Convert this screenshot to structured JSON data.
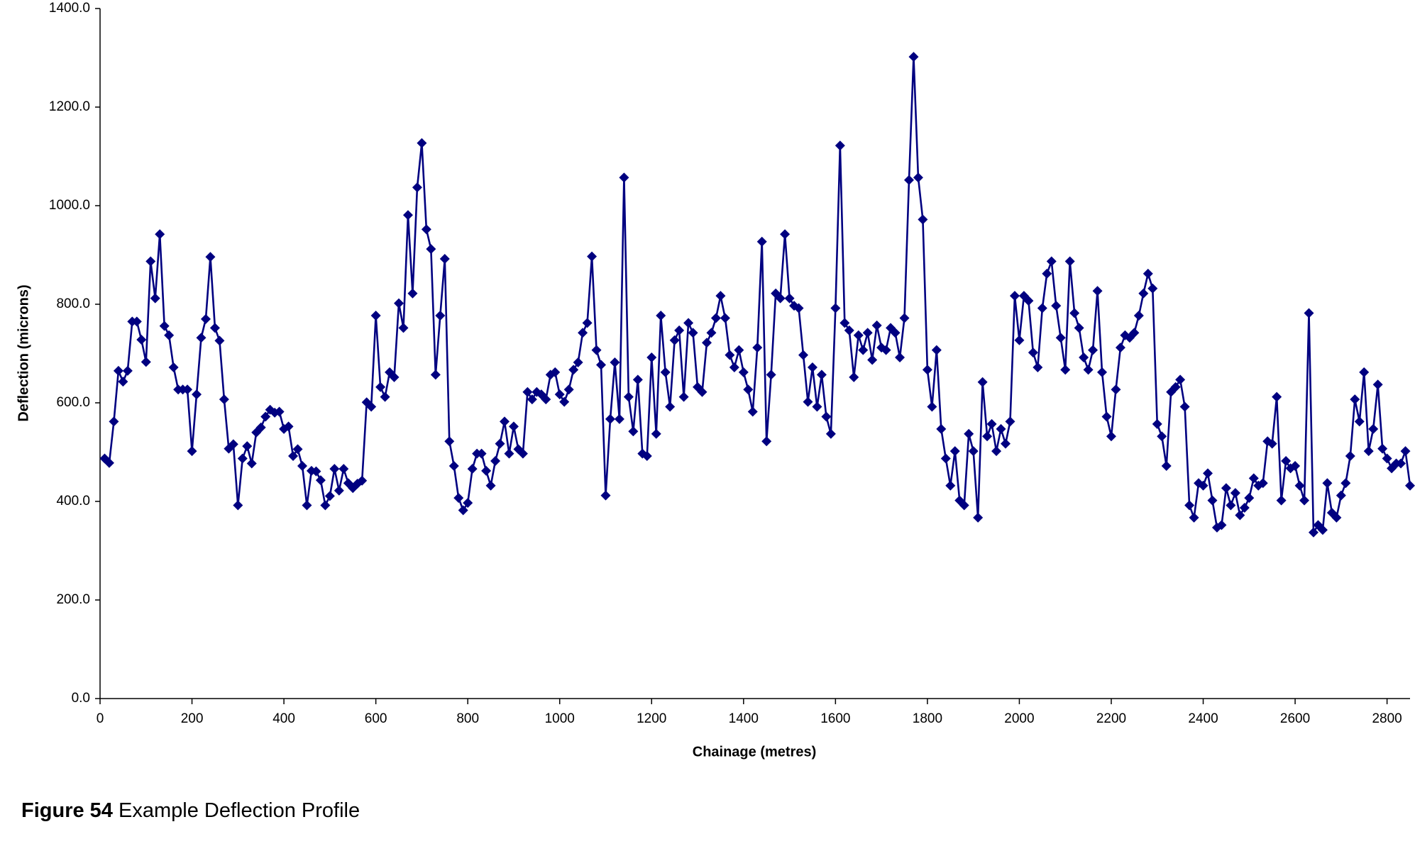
{
  "chart_data": {
    "type": "line",
    "x_label": "Chainage (metres)",
    "y_label": "Deflection (microns)",
    "caption": {
      "label": "Figure 54",
      "text": "Example Deflection Profile"
    },
    "color": "#000080",
    "marker": "diamond",
    "grid": false,
    "xlim": [
      0,
      2850
    ],
    "xticks": [
      0,
      200,
      400,
      600,
      800,
      1000,
      1200,
      1400,
      1600,
      1800,
      2000,
      2200,
      2400,
      2600,
      2800
    ],
    "ylim": [
      0,
      1400
    ],
    "yticks": [
      {
        "value": 0,
        "label": "0.0"
      },
      {
        "value": 200,
        "label": "200.0"
      },
      {
        "value": 400,
        "label": "400.0"
      },
      {
        "value": 600,
        "label": "600.0"
      },
      {
        "value": 800,
        "label": "800.0"
      },
      {
        "value": 1000,
        "label": "1000.0"
      },
      {
        "value": 1200,
        "label": "1200.0"
      },
      {
        "value": 1400,
        "label": "1400.0"
      }
    ],
    "x": [
      10,
      20,
      30,
      40,
      50,
      60,
      70,
      80,
      90,
      100,
      110,
      120,
      130,
      140,
      150,
      160,
      170,
      180,
      190,
      200,
      210,
      220,
      230,
      240,
      250,
      260,
      270,
      280,
      290,
      300,
      310,
      320,
      330,
      340,
      350,
      360,
      370,
      380,
      390,
      400,
      410,
      420,
      430,
      440,
      450,
      460,
      470,
      480,
      490,
      500,
      510,
      520,
      530,
      540,
      550,
      560,
      570,
      580,
      590,
      600,
      610,
      620,
      630,
      640,
      650,
      660,
      670,
      680,
      690,
      700,
      710,
      720,
      730,
      740,
      750,
      760,
      770,
      780,
      790,
      800,
      810,
      820,
      830,
      840,
      850,
      860,
      870,
      880,
      890,
      900,
      910,
      920,
      930,
      940,
      950,
      960,
      970,
      980,
      990,
      1000,
      1010,
      1020,
      1030,
      1040,
      1050,
      1060,
      1070,
      1080,
      1090,
      1100,
      1110,
      1120,
      1130,
      1140,
      1150,
      1160,
      1170,
      1180,
      1190,
      1200,
      1210,
      1220,
      1230,
      1240,
      1250,
      1260,
      1270,
      1280,
      1290,
      1300,
      1310,
      1320,
      1330,
      1340,
      1350,
      1360,
      1370,
      1380,
      1390,
      1400,
      1410,
      1420,
      1430,
      1440,
      1450,
      1460,
      1470,
      1480,
      1490,
      1500,
      1510,
      1520,
      1530,
      1540,
      1550,
      1560,
      1570,
      1580,
      1590,
      1600,
      1610,
      1620,
      1630,
      1640,
      1650,
      1660,
      1670,
      1680,
      1690,
      1700,
      1710,
      1720,
      1730,
      1740,
      1750,
      1760,
      1770,
      1780,
      1790,
      1800,
      1810,
      1820,
      1830,
      1840,
      1850,
      1860,
      1870,
      1880,
      1890,
      1900,
      1910,
      1920,
      1930,
      1940,
      1950,
      1960,
      1970,
      1980,
      1990,
      2000,
      2010,
      2020,
      2030,
      2040,
      2050,
      2060,
      2070,
      2080,
      2090,
      2100,
      2110,
      2120,
      2130,
      2140,
      2150,
      2160,
      2170,
      2180,
      2190,
      2200,
      2210,
      2220,
      2230,
      2240,
      2250,
      2260,
      2270,
      2280,
      2290,
      2300,
      2310,
      2320,
      2330,
      2340,
      2350,
      2360,
      2370,
      2380,
      2390,
      2400,
      2410,
      2420,
      2430,
      2440,
      2450,
      2460,
      2470,
      2480,
      2490,
      2500,
      2510,
      2520,
      2530,
      2540,
      2550,
      2560,
      2570,
      2580,
      2590,
      2600,
      2610,
      2620,
      2630,
      2640,
      2650,
      2660,
      2670,
      2680,
      2690,
      2700,
      2710,
      2720,
      2730,
      2740,
      2750,
      2760,
      2770,
      2780,
      2790,
      2800,
      2810,
      2820,
      2830,
      2840,
      2850
    ],
    "values": [
      487,
      478,
      562,
      665,
      643,
      665,
      765,
      765,
      728,
      683,
      887,
      812,
      942,
      756,
      737,
      672,
      627,
      627,
      627,
      502,
      617,
      732,
      770,
      896,
      752,
      726,
      607,
      507,
      516,
      392,
      487,
      512,
      477,
      540,
      550,
      572,
      586,
      580,
      582,
      547,
      552,
      492,
      506,
      472,
      392,
      462,
      461,
      443,
      392,
      411,
      466,
      422,
      466,
      437,
      427,
      436,
      442,
      601,
      592,
      777,
      632,
      612,
      662,
      652,
      802,
      752,
      981,
      822,
      1037,
      1127,
      952,
      912,
      657,
      777,
      892,
      522,
      472,
      407,
      382,
      397,
      466,
      497,
      497,
      462,
      432,
      482,
      517,
      562,
      497,
      552,
      506,
      497,
      622,
      607,
      622,
      617,
      607,
      657,
      662,
      617,
      602,
      627,
      667,
      682,
      742,
      762,
      897,
      707,
      677,
      412,
      567,
      682,
      567,
      1057,
      612,
      542,
      647,
      497,
      492,
      692,
      537,
      777,
      662,
      592,
      727,
      747,
      612,
      762,
      742,
      632,
      622,
      722,
      742,
      772,
      817,
      772,
      697,
      672,
      707,
      662,
      627,
      582,
      712,
      927,
      522,
      657,
      822,
      812,
      942,
      812,
      797,
      792,
      697,
      602,
      672,
      592,
      657,
      572,
      537,
      792,
      1122,
      762,
      747,
      652,
      737,
      707,
      742,
      687,
      757,
      712,
      707,
      752,
      742,
      692,
      772,
      1052,
      1302,
      1057,
      972,
      667,
      592,
      707,
      547,
      487,
      432,
      502,
      402,
      392,
      537,
      502,
      367,
      642,
      532,
      557,
      502,
      547,
      517,
      562,
      817,
      727,
      817,
      807,
      702,
      672,
      792,
      862,
      887,
      797,
      732,
      667,
      887,
      782,
      752,
      692,
      667,
      707,
      827,
      662,
      572,
      532,
      627,
      712,
      737,
      732,
      742,
      777,
      822,
      862,
      832,
      557,
      532,
      472,
      622,
      632,
      647,
      592,
      392,
      367,
      437,
      432,
      457,
      402,
      347,
      352,
      427,
      392,
      417,
      372,
      387,
      407,
      447,
      432,
      437,
      522,
      517,
      612,
      402,
      482,
      467,
      472,
      432,
      402,
      782,
      337,
      352,
      342,
      437,
      377,
      367,
      412,
      437,
      492,
      607,
      562,
      662,
      502,
      547,
      637,
      507,
      487,
      467,
      477,
      477,
      502,
      432
    ]
  }
}
